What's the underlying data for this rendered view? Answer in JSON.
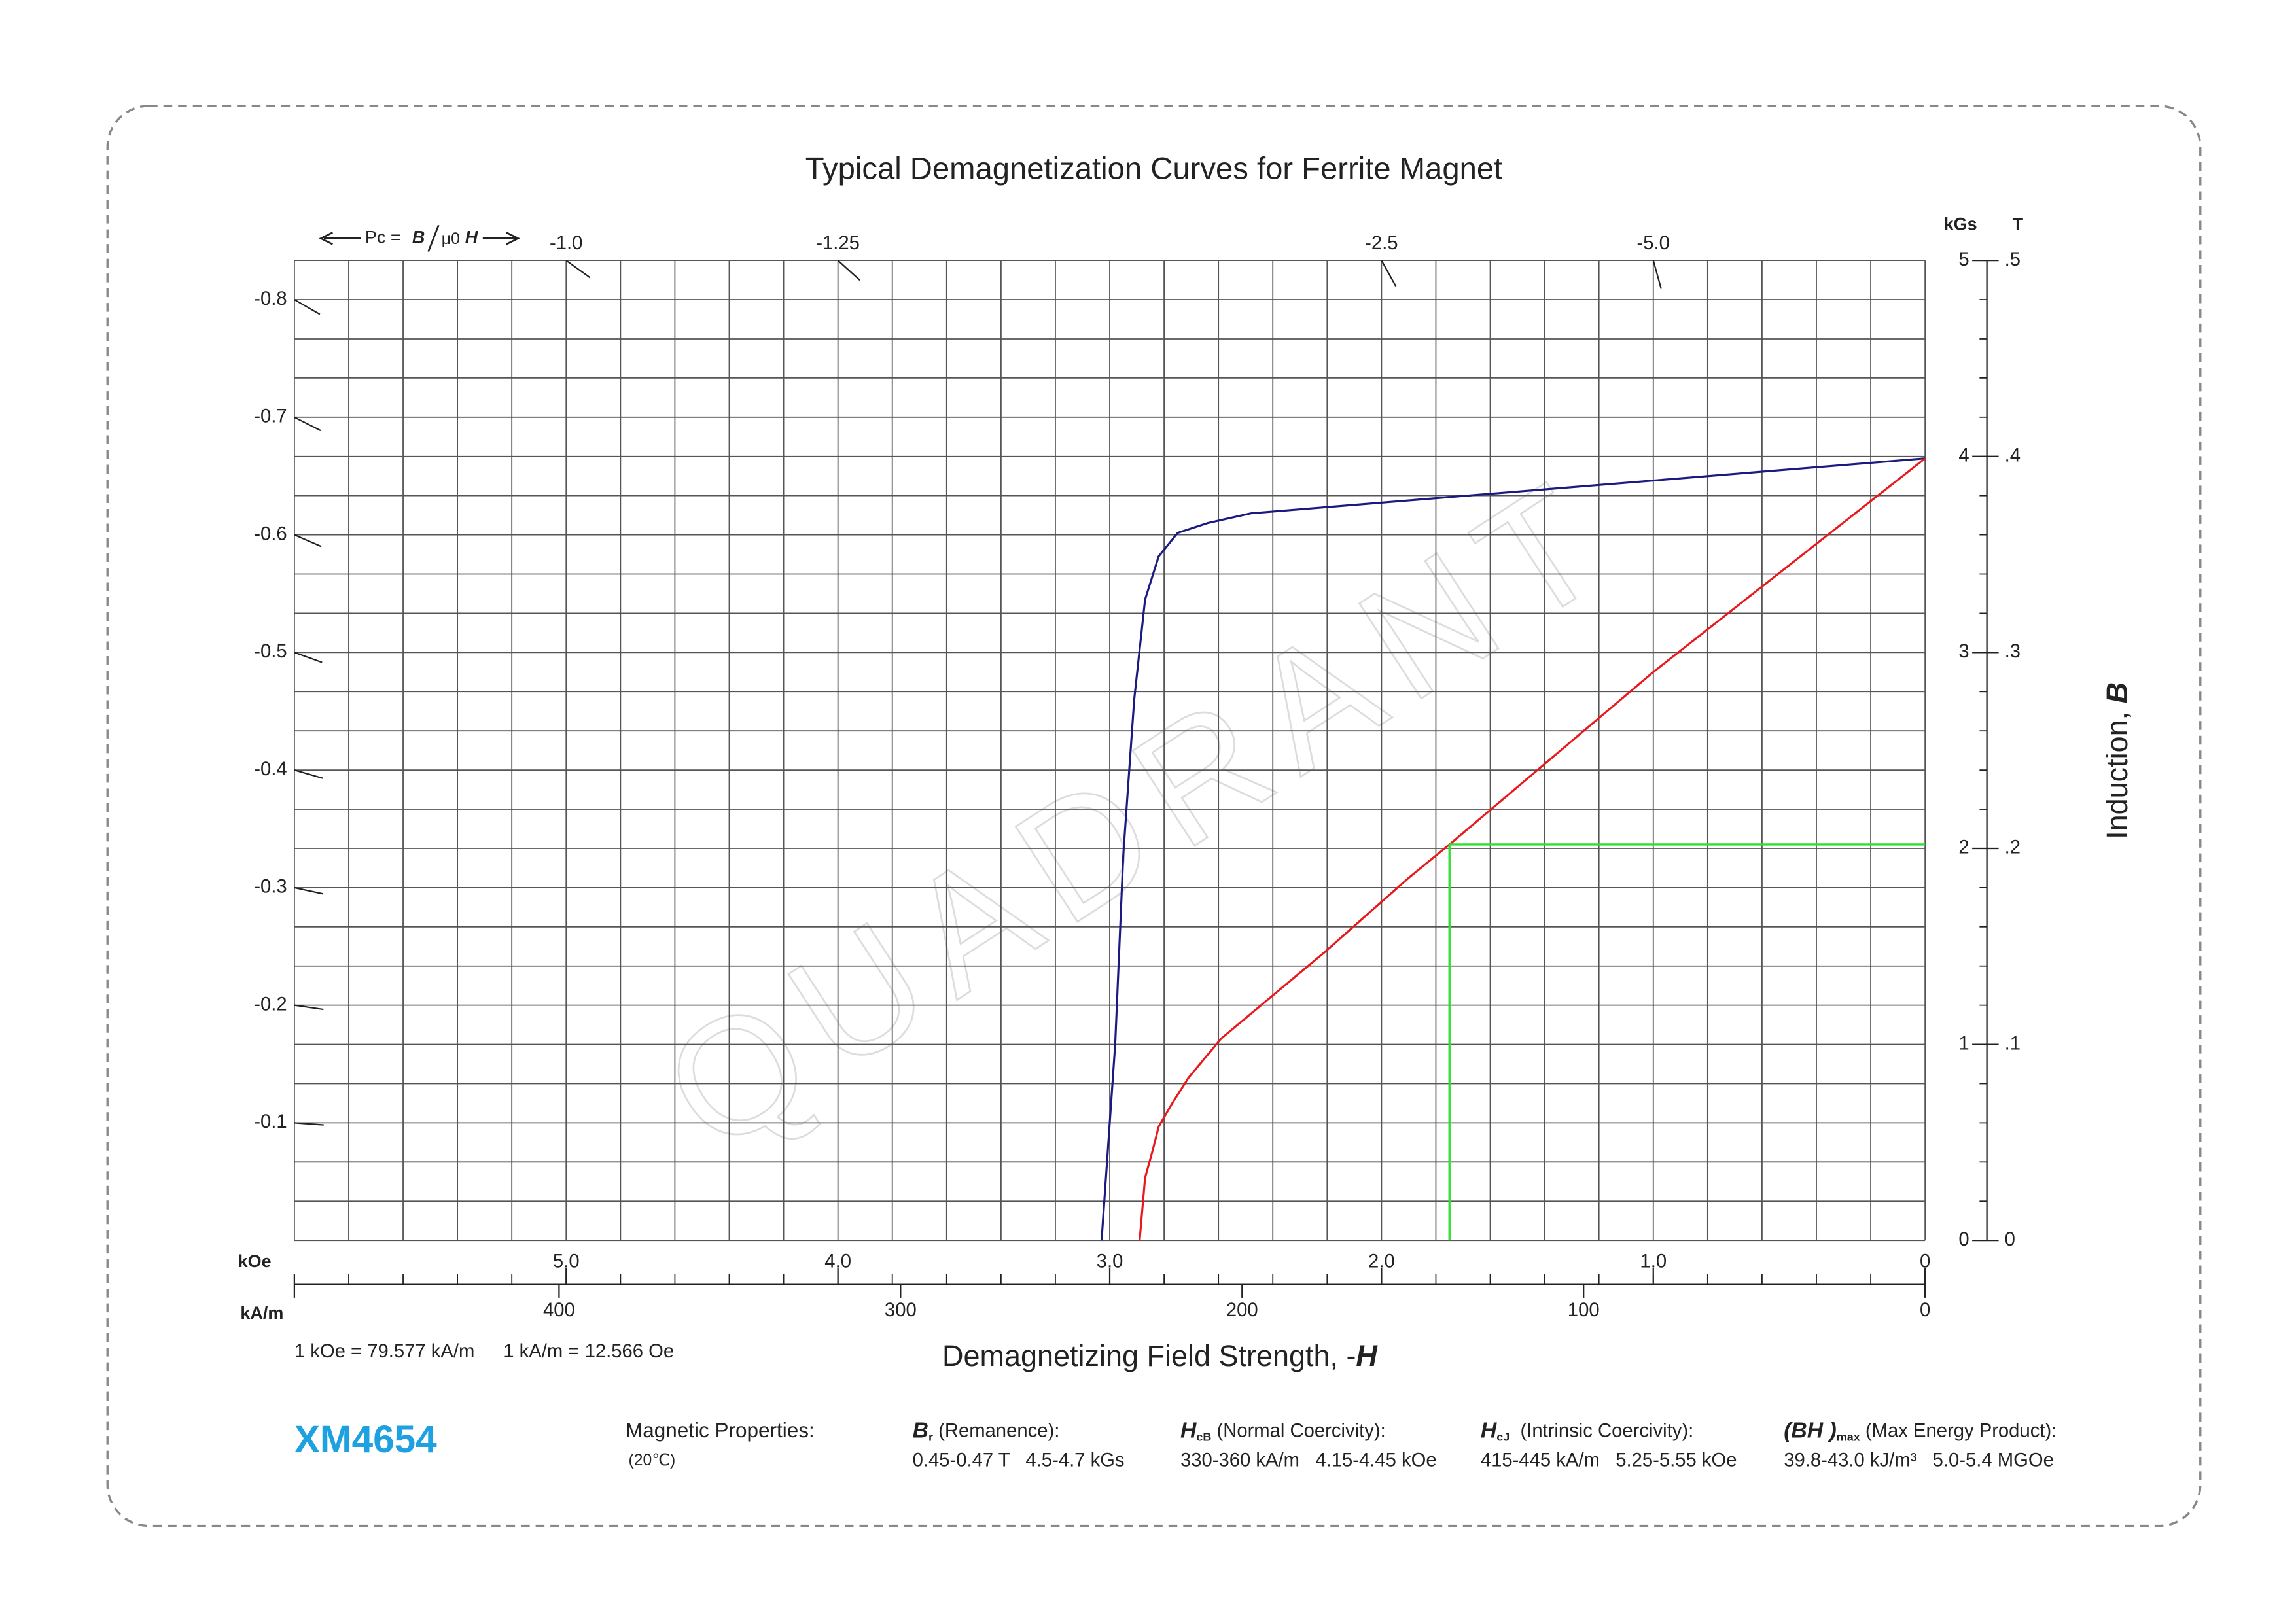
{
  "watermark": "QUADRANT",
  "chart_data": {
    "type": "line",
    "title": "Typical Demagnetization Curves for Ferrite Magnet",
    "x_label": "Demagnetizing Field Strength, -",
    "x_label_symbol": "H",
    "y_label": "Induction, ",
    "y_label_symbol": "B",
    "x_unit": "kOe",
    "x2_unit": "kA/m",
    "y_unit": "kGs",
    "y2_unit": "T",
    "xlim": [
      6,
      0
    ],
    "xticks": [
      {
        "value": 5,
        "label": "5.0"
      },
      {
        "value": 4,
        "label": "4.0"
      },
      {
        "value": 3,
        "label": "3.0"
      },
      {
        "value": 2,
        "label": "2.0"
      },
      {
        "value": 1,
        "label": "1.0"
      },
      0
    ],
    "x2lim": [
      477.5,
      0
    ],
    "x2ticks": [
      400,
      300,
      200,
      100,
      0
    ],
    "ylim": [
      0,
      5
    ],
    "yticks": [
      0,
      1,
      2,
      3,
      4,
      5
    ],
    "y2lim": [
      0,
      0.5
    ],
    "y2ticks": [
      0,
      {
        "value": 0.1,
        "label": ".1"
      },
      {
        "value": 0.2,
        "label": ".2"
      },
      {
        "value": 0.3,
        "label": ".3"
      },
      {
        "value": 0.4,
        "label": ".4"
      },
      {
        "value": 0.5,
        "label": ".5"
      }
    ],
    "grid": {
      "x_step": 0.2,
      "y_step": 0.2,
      "color": "#555555"
    },
    "series": [
      {
        "color": "#1a1a80",
        "x": [
          0,
          2.48,
          2.64,
          2.75,
          2.82,
          2.87,
          2.91,
          2.95,
          2.98,
          3.03
        ],
        "values": [
          3.99,
          3.71,
          3.66,
          3.61,
          3.49,
          3.27,
          2.76,
          1.97,
          1.0,
          0
        ]
      },
      {
        "color": "#e8191c",
        "x": [
          0,
          1.0,
          1.75,
          1.9,
          2.21,
          2.59,
          2.71,
          2.77,
          2.82,
          2.84,
          2.87,
          2.89
        ],
        "values": [
          3.99,
          2.9,
          2.02,
          1.85,
          1.47,
          1.03,
          0.83,
          0.7,
          0.58,
          0.47,
          0.32,
          0
        ]
      }
    ],
    "operating_point": {
      "x": 1.75,
      "y": 2.02,
      "color": "#33dd33"
    },
    "permeance": {
      "prefix": "Pc =",
      "symbol_b": "B",
      "mid": "μ0",
      "symbol_h": "H",
      "ticks": [
        -0.1,
        -0.2,
        -0.3,
        -0.4,
        -0.5,
        -0.6,
        -0.7,
        -0.8,
        {
          "value": -1,
          "label": "-1.0"
        },
        -1.25,
        -2.5,
        {
          "value": -5,
          "label": "-5.0"
        }
      ]
    },
    "conversion": [
      "1 kOe = 79.577 kA/m",
      "1 kA/m = 12.566 Oe"
    ]
  },
  "product": {
    "code": "XM4654",
    "heading": "Magnetic Properties:",
    "temperature": "(20℃)",
    "items": [
      {
        "symbol": "B",
        "sub": "r",
        "name": " (Remanence):",
        "values": "0.45-0.47 T   4.5-4.7 kGs"
      },
      {
        "symbol": "H",
        "sub": "cB",
        "name": " (Normal Coercivity):",
        "values": "330-360 kA/m   4.15-4.45 kOe"
      },
      {
        "symbol": "H",
        "sub": "cJ",
        "name": "  (Intrinsic Coercivity):",
        "values": "415-445 kA/m   5.25-5.55 kOe"
      },
      {
        "symbol": "(BH )",
        "sub": "max",
        "name": " (Max Energy Product):",
        "values": "39.8-43.0 kJ/m³   5.0-5.4 MGOe"
      }
    ]
  }
}
